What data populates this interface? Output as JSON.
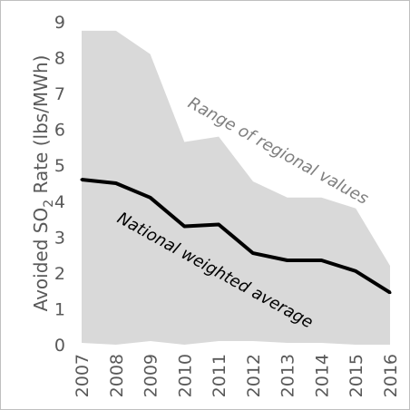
{
  "chart_data": {
    "type": "area",
    "x": [
      "2007",
      "2008",
      "2009",
      "2010",
      "2011",
      "2012",
      "2013",
      "2014",
      "2015",
      "2016"
    ],
    "ylabel_main": "Avoided SO",
    "ylabel_sub": "2",
    "ylabel_rest": " Rate (lbs/MWh)",
    "ylim": [
      0,
      9
    ],
    "yticks": [
      "0",
      "1",
      "2",
      "3",
      "4",
      "5",
      "6",
      "7",
      "8",
      "9"
    ],
    "grid": false,
    "series": [
      {
        "name": "National weighted average",
        "values": [
          4.6,
          4.5,
          4.1,
          3.3,
          3.35,
          2.55,
          2.35,
          2.35,
          2.05,
          1.45
        ],
        "color": "#000000"
      }
    ],
    "range": {
      "name": "Range of regional values",
      "upper": [
        8.75,
        8.75,
        8.1,
        5.65,
        5.8,
        4.55,
        4.1,
        4.1,
        3.8,
        2.2
      ],
      "lower": [
        0.05,
        0.0,
        0.1,
        0.0,
        0.1,
        0.1,
        0.05,
        0.05,
        0.0,
        0.0
      ],
      "color": "#d9d9d9"
    },
    "annotations": [
      {
        "text": "Range of regional values",
        "style": "gray-italic"
      },
      {
        "text": "National weighted average",
        "style": "black-italic"
      }
    ]
  }
}
